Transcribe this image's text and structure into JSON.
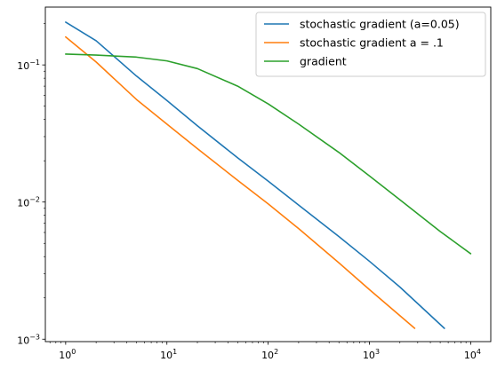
{
  "chart_data": {
    "type": "line",
    "title": "",
    "xlabel": "",
    "ylabel": "",
    "xscale": "log",
    "yscale": "log",
    "xlim": [
      0.63,
      15800
    ],
    "ylim": [
      0.00096,
      0.264
    ],
    "grid": false,
    "legend_position": "upper right",
    "x_ticks": [
      {
        "value": 1,
        "base": "10",
        "exp": "0"
      },
      {
        "value": 10,
        "base": "10",
        "exp": "1"
      },
      {
        "value": 100,
        "base": "10",
        "exp": "2"
      },
      {
        "value": 1000,
        "base": "10",
        "exp": "3"
      },
      {
        "value": 10000,
        "base": "10",
        "exp": "4"
      }
    ],
    "y_ticks": [
      {
        "value": 0.001,
        "base": "10",
        "exp": "−3"
      },
      {
        "value": 0.01,
        "base": "10",
        "exp": "−2"
      },
      {
        "value": 0.1,
        "base": "10",
        "exp": "−1"
      }
    ],
    "series": [
      {
        "name": "stochastic gradient (a=0.05)",
        "color": "#1f77b4",
        "x": [
          1,
          2,
          5,
          10,
          20,
          50,
          100,
          200,
          500,
          1000,
          2000,
          5500
        ],
        "y": [
          0.205,
          0.15,
          0.083,
          0.055,
          0.036,
          0.021,
          0.0142,
          0.0095,
          0.0056,
          0.0037,
          0.0024,
          0.0012
        ]
      },
      {
        "name": "stochastic gradient a = .1",
        "color": "#ff7f0e",
        "x": [
          1,
          2,
          5,
          10,
          20,
          50,
          100,
          200,
          500,
          1000,
          2800
        ],
        "y": [
          0.16,
          0.105,
          0.056,
          0.037,
          0.0245,
          0.0144,
          0.0097,
          0.0064,
          0.0036,
          0.0023,
          0.0012
        ]
      },
      {
        "name": "gradient",
        "color": "#2ca02c",
        "x": [
          1,
          2,
          5,
          10,
          20,
          50,
          100,
          200,
          500,
          1000,
          2000,
          5000,
          10000
        ],
        "y": [
          0.12,
          0.118,
          0.114,
          0.107,
          0.094,
          0.07,
          0.052,
          0.037,
          0.023,
          0.0155,
          0.0104,
          0.0061,
          0.0042
        ]
      }
    ]
  }
}
